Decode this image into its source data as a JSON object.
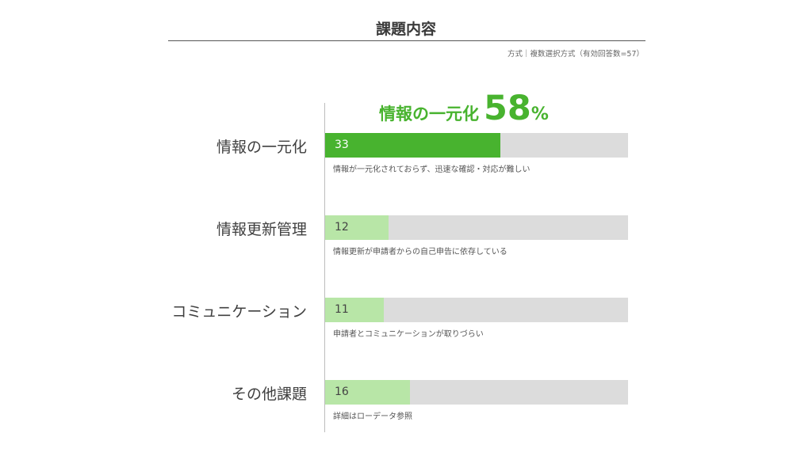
{
  "header": {
    "title": "課題内容",
    "subtitle": "方式｜複数選択方式（有効回答数=57）"
  },
  "headline": {
    "label": "情報の一元化",
    "value": "58",
    "unit": "%"
  },
  "colors": {
    "accent": "#48b32f",
    "accent_light": "#b8e6a7",
    "track": "#dcdcdc"
  },
  "chart_data": {
    "type": "bar",
    "orientation": "horizontal",
    "total_respondents": 57,
    "xlim": [
      0,
      57
    ],
    "categories": [
      "情報の一元化",
      "情報更新管理",
      "コミュニケーション",
      "その他課題"
    ],
    "values": [
      33,
      12,
      11,
      16
    ],
    "value_labels": [
      "33",
      "12",
      "11",
      "16"
    ],
    "notes": [
      "情報が一元化されておらず、迅速な確認・対応が難しい",
      "情報更新が申請者からの自己申告に依存している",
      "申請者とコミュニケーションが取りづらい",
      "詳細はローデータ参照"
    ],
    "highlight_index": 0
  }
}
